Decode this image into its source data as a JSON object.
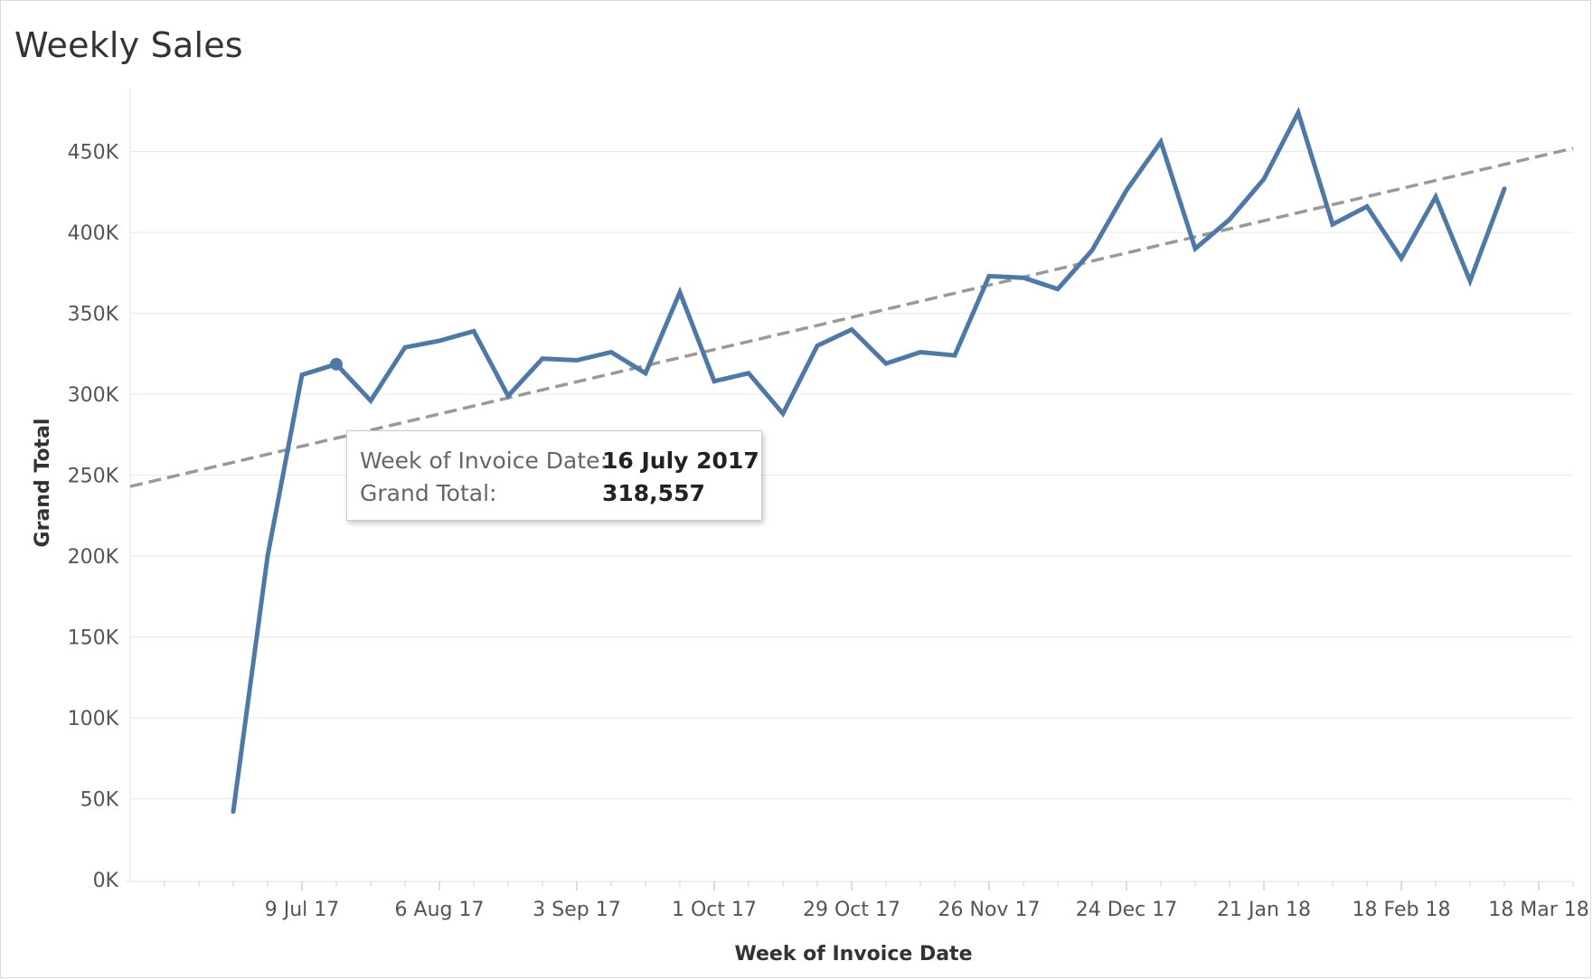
{
  "chart_data": {
    "type": "line",
    "title": "Weekly Sales",
    "xlabel": "Week of Invoice Date",
    "ylabel": "Grand Total",
    "ylim": [
      0,
      490000
    ],
    "yticks": [
      {
        "value": 0,
        "label": "0K"
      },
      {
        "value": 50000,
        "label": "50K"
      },
      {
        "value": 100000,
        "label": "100K"
      },
      {
        "value": 150000,
        "label": "150K"
      },
      {
        "value": 200000,
        "label": "200K"
      },
      {
        "value": 250000,
        "label": "250K"
      },
      {
        "value": 300000,
        "label": "300K"
      },
      {
        "value": 350000,
        "label": "350K"
      },
      {
        "value": 400000,
        "label": "400K"
      },
      {
        "value": 450000,
        "label": "450K"
      }
    ],
    "xlim": [
      "2017-06-04",
      "2018-03-25"
    ],
    "xticks": [
      {
        "date": "2017-07-09",
        "label": "9 Jul 17"
      },
      {
        "date": "2017-08-06",
        "label": "6 Aug 17"
      },
      {
        "date": "2017-09-03",
        "label": "3 Sep 17"
      },
      {
        "date": "2017-10-01",
        "label": "1 Oct 17"
      },
      {
        "date": "2017-10-29",
        "label": "29 Oct 17"
      },
      {
        "date": "2017-11-26",
        "label": "26 Nov 17"
      },
      {
        "date": "2017-12-24",
        "label": "24 Dec 17"
      },
      {
        "date": "2018-01-21",
        "label": "21 Jan 18"
      },
      {
        "date": "2018-02-18",
        "label": "18 Feb 18"
      },
      {
        "date": "2018-03-18",
        "label": "18 Mar 18"
      }
    ],
    "grid": true,
    "series": [
      {
        "color": "#4e79a7",
        "points": [
          {
            "x": "2017-06-25",
            "y": 42000
          },
          {
            "x": "2017-07-02",
            "y": 200000
          },
          {
            "x": "2017-07-09",
            "y": 312000
          },
          {
            "x": "2017-07-16",
            "y": 318557
          },
          {
            "x": "2017-07-23",
            "y": 296000
          },
          {
            "x": "2017-07-30",
            "y": 329000
          },
          {
            "x": "2017-08-06",
            "y": 333000
          },
          {
            "x": "2017-08-13",
            "y": 339000
          },
          {
            "x": "2017-08-20",
            "y": 299000
          },
          {
            "x": "2017-08-27",
            "y": 322000
          },
          {
            "x": "2017-09-03",
            "y": 321000
          },
          {
            "x": "2017-09-10",
            "y": 326000
          },
          {
            "x": "2017-09-17",
            "y": 313000
          },
          {
            "x": "2017-09-24",
            "y": 363000
          },
          {
            "x": "2017-10-01",
            "y": 308000
          },
          {
            "x": "2017-10-08",
            "y": 313000
          },
          {
            "x": "2017-10-15",
            "y": 288000
          },
          {
            "x": "2017-10-22",
            "y": 330000
          },
          {
            "x": "2017-10-29",
            "y": 340000
          },
          {
            "x": "2017-11-05",
            "y": 319000
          },
          {
            "x": "2017-11-12",
            "y": 326000
          },
          {
            "x": "2017-11-19",
            "y": 324000
          },
          {
            "x": "2017-11-26",
            "y": 373000
          },
          {
            "x": "2017-12-03",
            "y": 372000
          },
          {
            "x": "2017-12-10",
            "y": 365000
          },
          {
            "x": "2017-12-17",
            "y": 389000
          },
          {
            "x": "2017-12-24",
            "y": 426000
          },
          {
            "x": "2017-12-31",
            "y": 456000
          },
          {
            "x": "2018-01-07",
            "y": 390000
          },
          {
            "x": "2018-01-14",
            "y": 408000
          },
          {
            "x": "2018-01-21",
            "y": 433000
          },
          {
            "x": "2018-01-28",
            "y": 474000
          },
          {
            "x": "2018-02-04",
            "y": 405000
          },
          {
            "x": "2018-02-11",
            "y": 416000
          },
          {
            "x": "2018-02-18",
            "y": 384000
          },
          {
            "x": "2018-02-25",
            "y": 422000
          },
          {
            "x": "2018-03-04",
            "y": 370000
          },
          {
            "x": "2018-03-11",
            "y": 427000
          }
        ]
      }
    ],
    "trend_line": {
      "style": "dashed",
      "color": "#999999",
      "start": {
        "x": "2017-06-04",
        "y": 243000
      },
      "end": {
        "x": "2018-03-25",
        "y": 452000
      }
    },
    "highlighted_point": {
      "x": "2017-07-16",
      "y": 318557
    }
  },
  "tooltip": {
    "row1_label": "Week of Invoice Date:",
    "row1_value": "16 July 2017",
    "row2_label": "Grand Total:",
    "row2_value": "318,557"
  }
}
